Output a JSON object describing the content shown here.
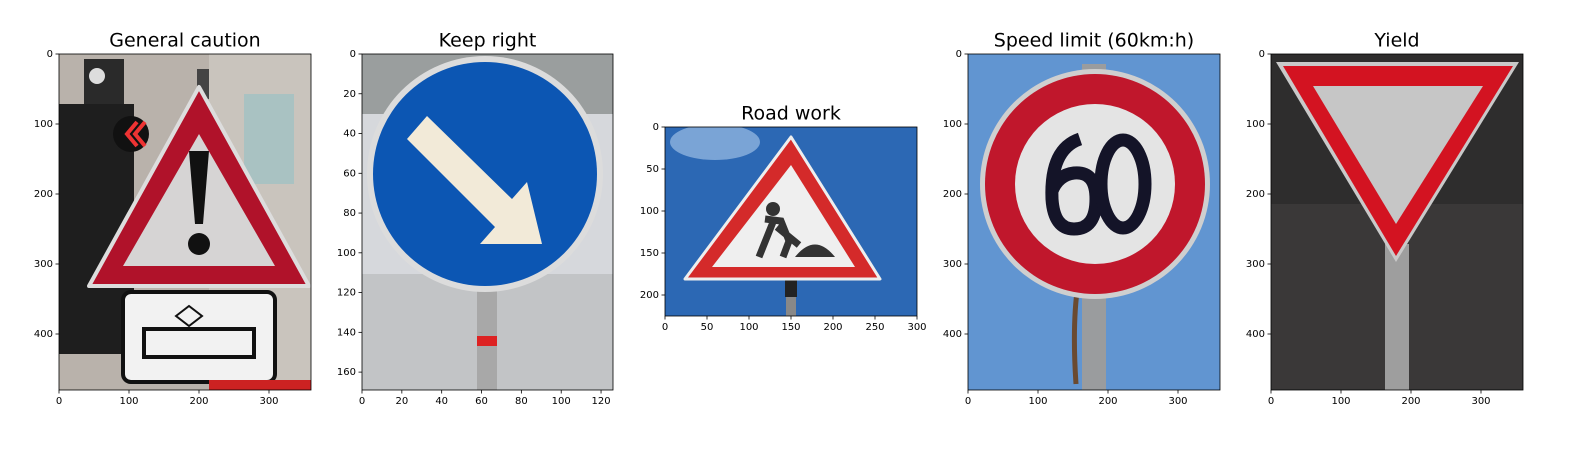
{
  "chart_data": [
    {
      "type": "image",
      "title": "General caution",
      "xlim": [
        0,
        360
      ],
      "ylim": [
        480,
        0
      ],
      "xticks": [
        0,
        100,
        200,
        300
      ],
      "yticks": [
        0,
        100,
        200,
        300,
        400
      ]
    },
    {
      "type": "image",
      "title": "Keep right",
      "xlim": [
        0,
        126
      ],
      "ylim": [
        169,
        0
      ],
      "xticks": [
        0,
        20,
        40,
        60,
        80,
        100,
        120
      ],
      "yticks": [
        0,
        20,
        40,
        60,
        80,
        100,
        120,
        140,
        160
      ]
    },
    {
      "type": "image",
      "title": "Road work",
      "xlim": [
        0,
        300
      ],
      "ylim": [
        225,
        0
      ],
      "xticks": [
        0,
        50,
        100,
        150,
        200,
        250,
        300
      ],
      "yticks": [
        0,
        50,
        100,
        150,
        200
      ]
    },
    {
      "type": "image",
      "title": "Speed limit (60km:h)",
      "xlim": [
        0,
        360
      ],
      "ylim": [
        480,
        0
      ],
      "xticks": [
        0,
        100,
        200,
        300
      ],
      "yticks": [
        0,
        100,
        200,
        300,
        400
      ]
    },
    {
      "type": "image",
      "title": "Yield",
      "xlim": [
        0,
        360
      ],
      "ylim": [
        480,
        0
      ],
      "xticks": [
        0,
        100,
        200,
        300
      ],
      "yticks": [
        0,
        100,
        200,
        300,
        400
      ]
    }
  ]
}
